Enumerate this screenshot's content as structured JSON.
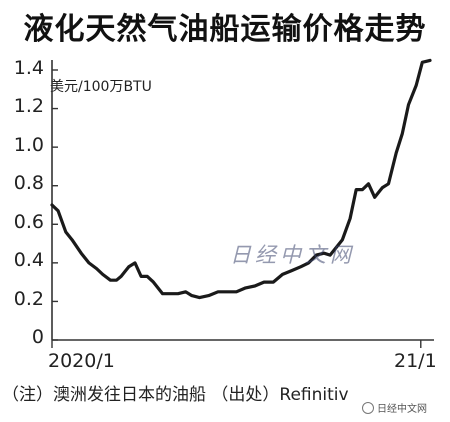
{
  "title": "液化天然气油船运输价格走势",
  "chart_data": {
    "type": "line",
    "ylabel": "美元/100万BTU",
    "ylim": [
      0,
      1.4
    ],
    "yticks": [
      "1.4",
      "1.2",
      "1.0",
      "0.8",
      "0.6",
      "0.4",
      "0.2",
      "0"
    ],
    "ytick_values": [
      1.4,
      1.2,
      1.0,
      0.8,
      0.6,
      0.4,
      0.2,
      0
    ],
    "xticks": [
      "2020/1",
      "21/1"
    ],
    "xlim": [
      0,
      12.3
    ],
    "xtick_values": [
      0,
      12.0
    ],
    "series": [
      {
        "x": [
          0.0,
          0.2,
          0.45,
          0.65,
          0.95,
          1.2,
          1.45,
          1.65,
          1.9,
          2.1,
          2.25,
          2.5,
          2.7,
          2.9,
          3.1,
          3.3,
          3.6,
          3.9,
          4.1,
          4.35,
          4.55,
          4.8,
          5.1,
          5.4,
          5.7,
          6.0,
          6.3,
          6.6,
          6.9,
          7.2,
          7.5,
          7.8,
          8.1,
          8.35,
          8.6,
          8.85,
          9.05,
          9.25,
          9.45,
          9.7,
          9.9,
          10.1,
          10.3,
          10.5,
          10.75,
          10.95,
          11.2,
          11.4,
          11.6,
          11.85,
          12.05,
          12.3
        ],
        "values": [
          0.7,
          0.67,
          0.56,
          0.52,
          0.45,
          0.4,
          0.37,
          0.34,
          0.31,
          0.31,
          0.33,
          0.38,
          0.4,
          0.33,
          0.33,
          0.3,
          0.24,
          0.24,
          0.24,
          0.25,
          0.23,
          0.22,
          0.23,
          0.25,
          0.25,
          0.25,
          0.27,
          0.28,
          0.3,
          0.3,
          0.34,
          0.36,
          0.38,
          0.4,
          0.44,
          0.45,
          0.44,
          0.48,
          0.52,
          0.63,
          0.78,
          0.78,
          0.81,
          0.74,
          0.79,
          0.81,
          0.97,
          1.07,
          1.22,
          1.32,
          1.44,
          1.45
        ],
        "color": "#1a1a1a"
      }
    ],
    "grid": false
  },
  "note": "（注）澳洲发往日本的油船  （出处）Refinitiv",
  "watermark": "日经中文网",
  "badge": "日经中文网"
}
